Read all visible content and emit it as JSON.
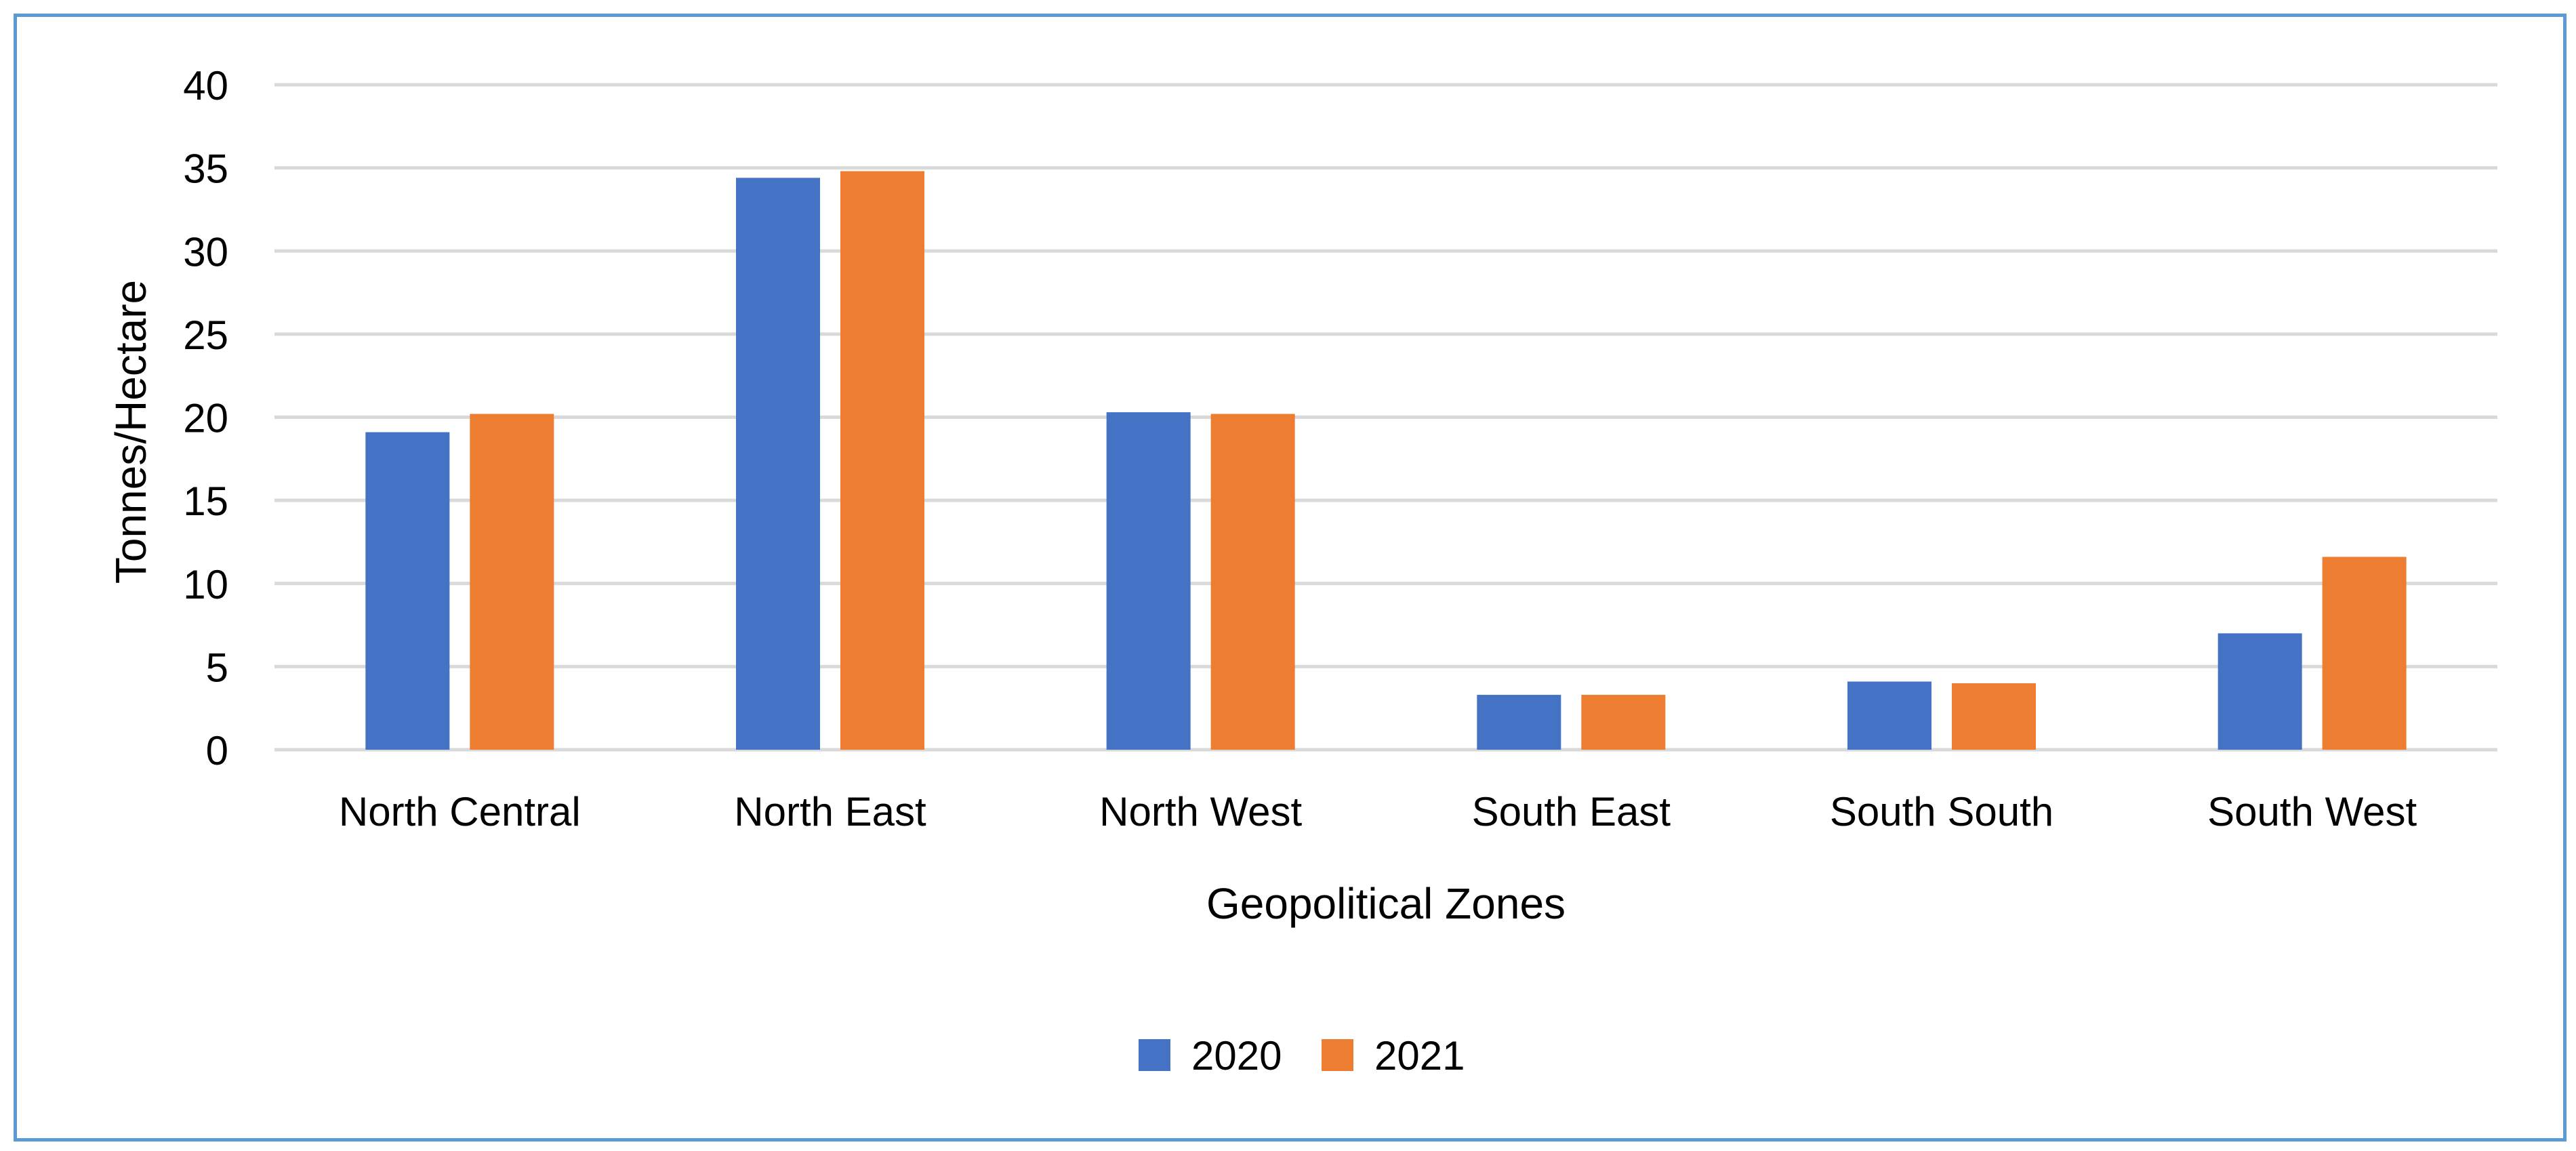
{
  "chart_data": {
    "type": "bar",
    "title": "",
    "xlabel": "Geopolitical Zones",
    "ylabel": "Tonnes/Hectare",
    "ylim": [
      0,
      40
    ],
    "yticks": [
      0,
      5,
      10,
      15,
      20,
      25,
      30,
      35,
      40
    ],
    "grid": true,
    "legend_position": "bottom-center",
    "categories": [
      "North Central",
      "North East",
      "North West",
      "South East",
      "South South",
      "South West"
    ],
    "series": [
      {
        "name": "2020",
        "color": "#4472c4",
        "values": [
          19.1,
          34.4,
          20.3,
          3.3,
          4.1,
          7.0
        ]
      },
      {
        "name": "2021",
        "color": "#ed7d31",
        "values": [
          20.2,
          34.8,
          20.2,
          3.3,
          4.0,
          11.6
        ]
      }
    ]
  },
  "frame": {
    "border_color": "#5b9bd5"
  },
  "grid_color": "#d9d9d9"
}
